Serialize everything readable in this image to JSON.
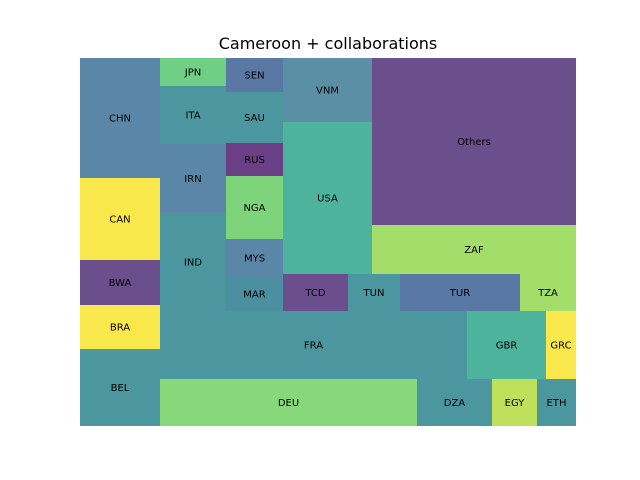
{
  "chart_data": {
    "type": "treemap",
    "title": "Cameroon + collaborations",
    "cells": [
      {
        "label": "CHN",
        "color": "#5a86a7"
      },
      {
        "label": "CAN",
        "color": "#f9e84b"
      },
      {
        "label": "BWA",
        "color": "#6b4e8c"
      },
      {
        "label": "BRA",
        "color": "#f9e84b"
      },
      {
        "label": "BEL",
        "color": "#4c979f"
      },
      {
        "label": "JPN",
        "color": "#6fcf84"
      },
      {
        "label": "ITA",
        "color": "#4c979f"
      },
      {
        "label": "IRN",
        "color": "#5a86a7"
      },
      {
        "label": "IND",
        "color": "#4c979f"
      },
      {
        "label": "SEN",
        "color": "#5a78a4"
      },
      {
        "label": "SAU",
        "color": "#4c979f"
      },
      {
        "label": "RUS",
        "color": "#6b3f86"
      },
      {
        "label": "NGA",
        "color": "#7dd47a"
      },
      {
        "label": "MYS",
        "color": "#5a86a7"
      },
      {
        "label": "MAR",
        "color": "#4c8fa0"
      },
      {
        "label": "VNM",
        "color": "#5a8fa6"
      },
      {
        "label": "USA",
        "color": "#4db39c"
      },
      {
        "label": "Others",
        "color": "#6b4e8c"
      },
      {
        "label": "ZAF",
        "color": "#a4de6a"
      },
      {
        "label": "TCD",
        "color": "#6b4e8c"
      },
      {
        "label": "TUN",
        "color": "#4c979f"
      },
      {
        "label": "TUR",
        "color": "#5a78a4"
      },
      {
        "label": "TZA",
        "color": "#a4de6a"
      },
      {
        "label": "FRA",
        "color": "#4c979f"
      },
      {
        "label": "GBR",
        "color": "#4db39c"
      },
      {
        "label": "GRC",
        "color": "#f9e84b"
      },
      {
        "label": "DEU",
        "color": "#86d87a"
      },
      {
        "label": "DZA",
        "color": "#4c979f"
      },
      {
        "label": "EGY",
        "color": "#bfe05a"
      },
      {
        "label": "ETH",
        "color": "#4c979f"
      }
    ]
  }
}
